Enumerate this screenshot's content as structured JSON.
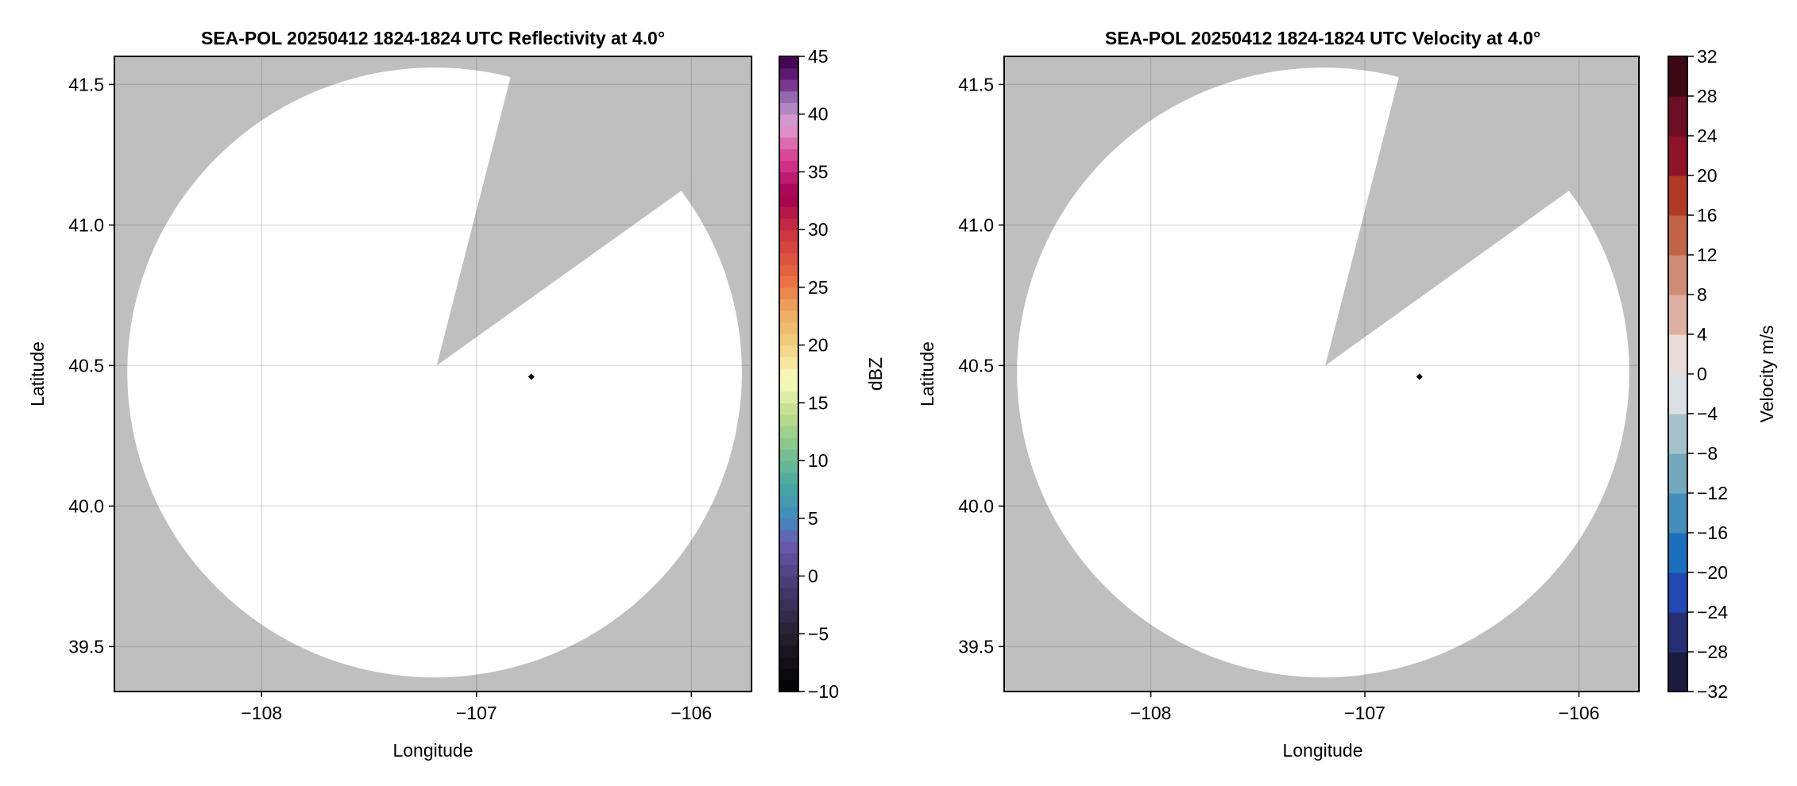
{
  "chart_data": [
    {
      "type": "heatmap",
      "title": "SEA-POL 20250412 1824-1824 UTC Reflectivity at 4.0°",
      "xlabel": "Longitude",
      "ylabel": "Latitude",
      "xlim": [
        -108.685,
        -105.72
      ],
      "ylim": [
        39.34,
        41.6
      ],
      "xticks": [
        -108,
        -107,
        -106
      ],
      "xtick_labels": [
        "−108",
        "−107",
        "−106"
      ],
      "yticks": [
        39.5,
        40.0,
        40.5,
        41.0,
        41.5
      ],
      "ytick_labels": [
        "39.5",
        "40.0",
        "40.5",
        "41.0",
        "41.5"
      ],
      "grid": true,
      "background_color": "#bfbfbf",
      "coverage_color": "#ffffff",
      "coverage": {
        "center": [
          -107.195,
          40.475
        ],
        "radius_lon": 1.43,
        "radius_lat": 1.085
      },
      "blocked_sector": {
        "apex": [
          -107.185,
          40.5
        ],
        "edge1": [
          -106.84,
          41.53
        ],
        "edge2": [
          -106.05,
          41.12
        ]
      },
      "radar_site": [
        -106.745,
        40.46
      ],
      "colorbar": {
        "label": "dBZ",
        "range": [
          -10,
          45
        ],
        "step": 1,
        "ticks": [
          -10,
          -5,
          0,
          5,
          10,
          15,
          20,
          25,
          30,
          35,
          40,
          45
        ],
        "tick_labels": [
          "−10",
          "−5",
          "0",
          "5",
          "10",
          "15",
          "20",
          "25",
          "30",
          "35",
          "40",
          "45"
        ],
        "color_stops": [
          [
            -10,
            "#000000"
          ],
          [
            -5,
            "#25202f"
          ],
          [
            0,
            "#4f4080"
          ],
          [
            3,
            "#6a5cb0"
          ],
          [
            5,
            "#3f8bc0"
          ],
          [
            8,
            "#4aa8a0"
          ],
          [
            11,
            "#80c490"
          ],
          [
            14,
            "#c0dc8c"
          ],
          [
            17,
            "#fafcc0"
          ],
          [
            20,
            "#f2d080"
          ],
          [
            23,
            "#eea860"
          ],
          [
            26,
            "#e86840"
          ],
          [
            30,
            "#c83040"
          ],
          [
            33,
            "#a00050"
          ],
          [
            36,
            "#d83890"
          ],
          [
            39,
            "#e0a0d0"
          ],
          [
            41,
            "#a080c0"
          ],
          [
            43,
            "#6a2080"
          ],
          [
            45,
            "#3a0048"
          ]
        ]
      }
    },
    {
      "type": "heatmap",
      "title": "SEA-POL 20250412 1824-1824 UTC Velocity at 4.0°",
      "xlabel": "Longitude",
      "ylabel": "Latitude",
      "xlim": [
        -108.685,
        -105.72
      ],
      "ylim": [
        39.34,
        41.6
      ],
      "xticks": [
        -108,
        -107,
        -106
      ],
      "xtick_labels": [
        "−108",
        "−107",
        "−106"
      ],
      "yticks": [
        39.5,
        40.0,
        40.5,
        41.0,
        41.5
      ],
      "ytick_labels": [
        "39.5",
        "40.0",
        "40.5",
        "41.0",
        "41.5"
      ],
      "grid": true,
      "background_color": "#bfbfbf",
      "coverage_color": "#ffffff",
      "coverage": {
        "center": [
          -107.195,
          40.475
        ],
        "radius_lon": 1.43,
        "radius_lat": 1.085
      },
      "blocked_sector": {
        "apex": [
          -107.185,
          40.5
        ],
        "edge1": [
          -106.84,
          41.53
        ],
        "edge2": [
          -106.05,
          41.12
        ]
      },
      "radar_site": [
        -106.745,
        40.46
      ],
      "colorbar": {
        "label": "Velocity m/s",
        "range": [
          -32,
          32
        ],
        "step": 4,
        "ticks": [
          -32,
          -28,
          -24,
          -20,
          -16,
          -12,
          -8,
          -4,
          0,
          4,
          8,
          12,
          16,
          20,
          24,
          28,
          32
        ],
        "tick_labels": [
          "−32",
          "−28",
          "−24",
          "−20",
          "−16",
          "−12",
          "−8",
          "−4",
          "0",
          "4",
          "8",
          "12",
          "16",
          "20",
          "24",
          "28",
          "32"
        ],
        "bin_colors": [
          "#1b1b40",
          "#283075",
          "#2248b4",
          "#1a70bc",
          "#448eba",
          "#74a8bc",
          "#a8c2cc",
          "#dadfe2",
          "#e8dcd8",
          "#dcb0a2",
          "#d08c74",
          "#c26448",
          "#b03a24",
          "#8e1228",
          "#6c0e24",
          "#3c0816"
        ]
      }
    }
  ]
}
